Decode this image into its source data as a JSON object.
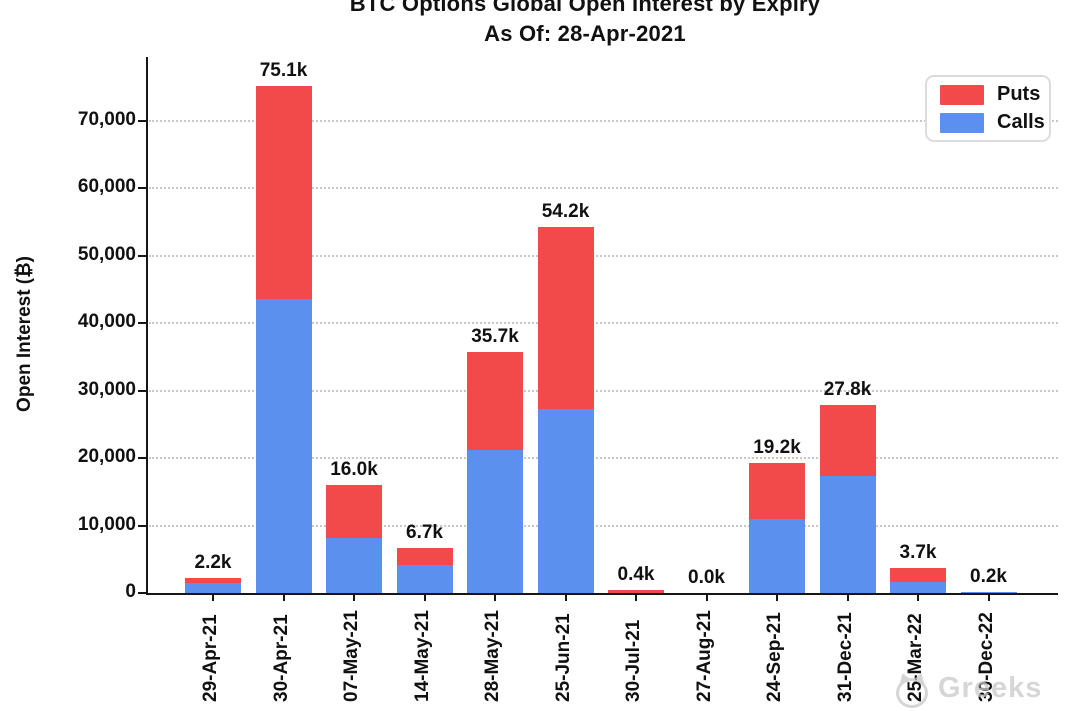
{
  "title": {
    "line1": "BTC Options Global Open Interest by Expiry",
    "line2": "As Of: 28-Apr-2021"
  },
  "y_axis": {
    "label": "Open Interest (₿)"
  },
  "legend": {
    "items": [
      {
        "label": "Puts",
        "color": "#f24a4a"
      },
      {
        "label": "Calls",
        "color": "#5b90ee"
      }
    ]
  },
  "watermark": {
    "text": "Greeks",
    "icon": "cat-logo"
  },
  "chart_data": {
    "type": "bar",
    "stacked": true,
    "title": "BTC Options Global Open Interest by Expiry",
    "subtitle": "As Of: 28-Apr-2021",
    "xlabel": "",
    "ylabel": "Open Interest (₿)",
    "categories": [
      "29-Apr-21",
      "30-Apr-21",
      "07-May-21",
      "14-May-21",
      "28-May-21",
      "25-Jun-21",
      "30-Jul-21",
      "27-Aug-21",
      "24-Sep-21",
      "31-Dec-21",
      "25-Mar-22",
      "30-Dec-22"
    ],
    "series": [
      {
        "name": "Calls",
        "color": "#5b90ee",
        "values": [
          1500,
          43600,
          8200,
          4100,
          21200,
          27300,
          0,
          0,
          10900,
          17400,
          1600,
          200
        ]
      },
      {
        "name": "Puts",
        "color": "#f24a4a",
        "values": [
          700,
          31500,
          7800,
          2600,
          14500,
          26900,
          400,
          0,
          8300,
          10400,
          2100,
          0
        ]
      }
    ],
    "bar_total_labels": [
      "2.2k",
      "75.1k",
      "16.0k",
      "6.7k",
      "35.7k",
      "54.2k",
      "0.4k",
      "0.0k",
      "19.2k",
      "27.8k",
      "3.7k",
      "0.2k"
    ],
    "bar_totals": [
      2200,
      75100,
      16000,
      6700,
      35700,
      54200,
      400,
      0,
      19200,
      27800,
      3700,
      200
    ],
    "ytick_values": [
      0,
      10000,
      20000,
      30000,
      40000,
      50000,
      60000,
      70000
    ],
    "ytick_labels": [
      "0",
      "10,000",
      "20,000",
      "30,000",
      "40,000",
      "50,000",
      "60,000",
      "70,000"
    ],
    "ylim": [
      0,
      79400
    ],
    "grid": "horizontal-dotted",
    "legend_position": "upper-right"
  }
}
